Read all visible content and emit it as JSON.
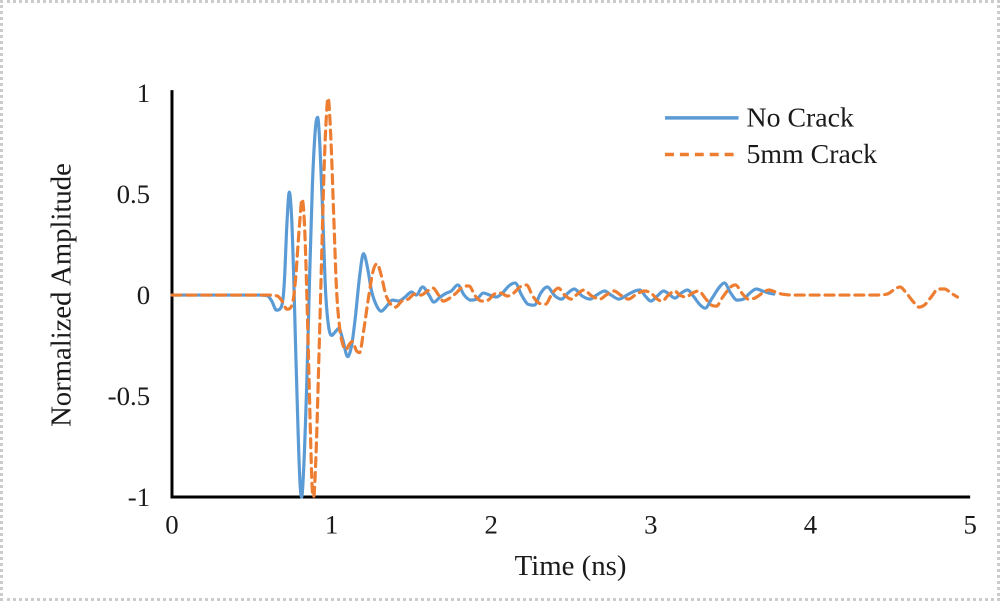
{
  "figure": {
    "background": "#ffffff",
    "border_color": "#cccccc"
  },
  "chart_data": {
    "type": "line",
    "title": "",
    "xlabel": "Time (ns)",
    "ylabel": "Normalized Amplitude",
    "xlim": [
      0,
      5
    ],
    "ylim": [
      -1,
      1
    ],
    "grid": false,
    "legend_position": "top-right",
    "axis_color": "#000000",
    "text_color": "#1a1a1a",
    "x_ticks": {
      "values": [
        0,
        1,
        2,
        3,
        4,
        5
      ],
      "labels": [
        "0",
        "1",
        "2",
        "3",
        "4",
        "5"
      ]
    },
    "y_ticks": {
      "values": [
        1,
        0.5,
        0,
        -0.5,
        -1
      ],
      "labels": [
        "1",
        "0.5",
        "0",
        "-0.5",
        "-1"
      ]
    },
    "series": [
      {
        "name": "No Crack",
        "color": "#5B9BD5",
        "style": "solid",
        "points": [
          [
            0,
            0
          ],
          [
            0.15,
            0
          ],
          [
            0.3,
            0
          ],
          [
            0.45,
            0
          ],
          [
            0.55,
            0
          ],
          [
            0.6,
            -0.005
          ],
          [
            0.625,
            -0.03
          ],
          [
            0.655,
            -0.075
          ],
          [
            0.675,
            -0.07
          ],
          [
            0.695,
            -0.02
          ],
          [
            0.705,
            0.08
          ],
          [
            0.72,
            0.35
          ],
          [
            0.735,
            0.51
          ],
          [
            0.75,
            0.38
          ],
          [
            0.762,
            0.1
          ],
          [
            0.775,
            -0.28
          ],
          [
            0.79,
            -0.68
          ],
          [
            0.802,
            -0.93
          ],
          [
            0.812,
            -1.0
          ],
          [
            0.825,
            -0.86
          ],
          [
            0.845,
            -0.42
          ],
          [
            0.862,
            0.08
          ],
          [
            0.88,
            0.55
          ],
          [
            0.898,
            0.82
          ],
          [
            0.912,
            0.88
          ],
          [
            0.928,
            0.72
          ],
          [
            0.945,
            0.38
          ],
          [
            0.962,
            0.02
          ],
          [
            0.98,
            -0.15
          ],
          [
            1.0,
            -0.2
          ],
          [
            1.02,
            -0.185
          ],
          [
            1.045,
            -0.165
          ],
          [
            1.07,
            -0.22
          ],
          [
            1.1,
            -0.305
          ],
          [
            1.125,
            -0.25
          ],
          [
            1.15,
            -0.1
          ],
          [
            1.175,
            0.09
          ],
          [
            1.2,
            0.205
          ],
          [
            1.225,
            0.135
          ],
          [
            1.25,
            0.02
          ],
          [
            1.28,
            -0.05
          ],
          [
            1.31,
            -0.08
          ],
          [
            1.345,
            -0.055
          ],
          [
            1.38,
            -0.025
          ],
          [
            1.42,
            -0.03
          ],
          [
            1.46,
            -0.01
          ],
          [
            1.5,
            0.015
          ],
          [
            1.53,
            0.0
          ],
          [
            1.57,
            0.04
          ],
          [
            1.61,
            0.0
          ],
          [
            1.64,
            -0.035
          ],
          [
            1.68,
            -0.01
          ],
          [
            1.72,
            0.01
          ],
          [
            1.75,
            0.02
          ],
          [
            1.79,
            0.05
          ],
          [
            1.83,
            0.0
          ],
          [
            1.87,
            -0.025
          ],
          [
            1.91,
            -0.02
          ],
          [
            1.95,
            0.01
          ],
          [
            1.99,
            0.0
          ],
          [
            2.03,
            -0.01
          ],
          [
            2.07,
            0.01
          ],
          [
            2.11,
            0.045
          ],
          [
            2.15,
            0.06
          ],
          [
            2.19,
            0.0
          ],
          [
            2.23,
            -0.045
          ],
          [
            2.27,
            -0.05
          ],
          [
            2.31,
            0.01
          ],
          [
            2.35,
            0.04
          ],
          [
            2.4,
            -0.005
          ],
          [
            2.44,
            -0.02
          ],
          [
            2.48,
            0.01
          ],
          [
            2.52,
            0.03
          ],
          [
            2.57,
            -0.005
          ],
          [
            2.62,
            -0.02
          ],
          [
            2.66,
            0.0
          ],
          [
            2.71,
            0.02
          ],
          [
            2.75,
            0.0
          ],
          [
            2.8,
            -0.02
          ],
          [
            2.85,
            0.0
          ],
          [
            2.9,
            0.02
          ],
          [
            2.93,
            0.025
          ],
          [
            2.97,
            -0.01
          ],
          [
            3.0,
            -0.03
          ],
          [
            3.04,
            -0.005
          ],
          [
            3.08,
            0.02
          ],
          [
            3.12,
            0.0
          ],
          [
            3.15,
            -0.015
          ],
          [
            3.19,
            0.01
          ],
          [
            3.23,
            0.025
          ],
          [
            3.27,
            -0.01
          ],
          [
            3.31,
            -0.05
          ],
          [
            3.34,
            -0.065
          ],
          [
            3.38,
            -0.02
          ],
          [
            3.43,
            0.04
          ],
          [
            3.46,
            0.06
          ],
          [
            3.5,
            0.01
          ],
          [
            3.54,
            -0.025
          ],
          [
            3.58,
            -0.02
          ],
          [
            3.62,
            0.01
          ],
          [
            3.66,
            0.03
          ],
          [
            3.7,
            0.02
          ],
          [
            3.74,
            0.01
          ],
          [
            3.77,
            0.005
          ]
        ]
      },
      {
        "name": "5mm Crack",
        "color": "#ED7D31",
        "style": "dashed",
        "points": [
          [
            0,
            0
          ],
          [
            0.15,
            0
          ],
          [
            0.3,
            0
          ],
          [
            0.45,
            0
          ],
          [
            0.6,
            0
          ],
          [
            0.66,
            -0.005
          ],
          [
            0.69,
            -0.03
          ],
          [
            0.72,
            -0.07
          ],
          [
            0.74,
            -0.065
          ],
          [
            0.76,
            -0.02
          ],
          [
            0.775,
            0.09
          ],
          [
            0.8,
            0.36
          ],
          [
            0.815,
            0.475
          ],
          [
            0.83,
            0.35
          ],
          [
            0.842,
            0.08
          ],
          [
            0.855,
            -0.3
          ],
          [
            0.868,
            -0.7
          ],
          [
            0.878,
            -0.95
          ],
          [
            0.887,
            -1.0
          ],
          [
            0.9,
            -0.84
          ],
          [
            0.918,
            -0.38
          ],
          [
            0.935,
            0.12
          ],
          [
            0.952,
            0.6
          ],
          [
            0.968,
            0.9
          ],
          [
            0.978,
            0.975
          ],
          [
            0.994,
            0.8
          ],
          [
            1.012,
            0.42
          ],
          [
            1.03,
            0.04
          ],
          [
            1.05,
            -0.16
          ],
          [
            1.072,
            -0.25
          ],
          [
            1.09,
            -0.27
          ],
          [
            1.11,
            -0.245
          ],
          [
            1.13,
            -0.23
          ],
          [
            1.155,
            -0.275
          ],
          [
            1.175,
            -0.285
          ],
          [
            1.2,
            -0.18
          ],
          [
            1.23,
            -0.02
          ],
          [
            1.26,
            0.12
          ],
          [
            1.285,
            0.155
          ],
          [
            1.31,
            0.1
          ],
          [
            1.34,
            0.0
          ],
          [
            1.37,
            -0.045
          ],
          [
            1.4,
            -0.06
          ],
          [
            1.44,
            -0.03
          ],
          [
            1.48,
            -0.02
          ],
          [
            1.52,
            0.005
          ],
          [
            1.56,
            0.0
          ],
          [
            1.6,
            0.02
          ],
          [
            1.635,
            0.035
          ],
          [
            1.67,
            0.0
          ],
          [
            1.7,
            -0.03
          ],
          [
            1.74,
            -0.015
          ],
          [
            1.78,
            0.01
          ],
          [
            1.82,
            0.04
          ],
          [
            1.86,
            0.045
          ],
          [
            1.9,
            -0.005
          ],
          [
            1.94,
            -0.03
          ],
          [
            1.98,
            -0.025
          ],
          [
            2.02,
            0.005
          ],
          [
            2.06,
            0.01
          ],
          [
            2.1,
            -0.005
          ],
          [
            2.14,
            0.01
          ],
          [
            2.18,
            0.04
          ],
          [
            2.22,
            0.05
          ],
          [
            2.26,
            -0.005
          ],
          [
            2.3,
            -0.04
          ],
          [
            2.34,
            -0.045
          ],
          [
            2.38,
            0.005
          ],
          [
            2.42,
            0.035
          ],
          [
            2.46,
            0.0
          ],
          [
            2.5,
            -0.02
          ],
          [
            2.54,
            0.005
          ],
          [
            2.58,
            0.025
          ],
          [
            2.63,
            -0.005
          ],
          [
            2.68,
            -0.02
          ],
          [
            2.72,
            0.0
          ],
          [
            2.77,
            0.02
          ],
          [
            2.81,
            0.0
          ],
          [
            2.86,
            -0.02
          ],
          [
            2.91,
            0.005
          ],
          [
            2.96,
            0.02
          ],
          [
            3.0,
            0.01
          ],
          [
            3.04,
            -0.02
          ],
          [
            3.07,
            -0.03
          ],
          [
            3.11,
            0.0
          ],
          [
            3.15,
            0.02
          ],
          [
            3.18,
            0.0
          ],
          [
            3.22,
            -0.01
          ],
          [
            3.26,
            0.01
          ],
          [
            3.3,
            0.02
          ],
          [
            3.34,
            -0.015
          ],
          [
            3.38,
            -0.05
          ],
          [
            3.41,
            -0.055
          ],
          [
            3.45,
            -0.01
          ],
          [
            3.5,
            0.04
          ],
          [
            3.53,
            0.05
          ],
          [
            3.57,
            0.01
          ],
          [
            3.61,
            -0.02
          ],
          [
            3.65,
            -0.015
          ],
          [
            3.7,
            0.01
          ],
          [
            3.74,
            0.025
          ],
          [
            3.78,
            0.015
          ],
          [
            3.82,
            0.005
          ],
          [
            3.9,
            0
          ],
          [
            4.0,
            0
          ],
          [
            4.1,
            0
          ],
          [
            4.2,
            0
          ],
          [
            4.3,
            0
          ],
          [
            4.4,
            0
          ],
          [
            4.48,
            0.005
          ],
          [
            4.53,
            0.03
          ],
          [
            4.56,
            0.04
          ],
          [
            4.6,
            0.01
          ],
          [
            4.64,
            -0.03
          ],
          [
            4.68,
            -0.06
          ],
          [
            4.72,
            -0.045
          ],
          [
            4.76,
            -0.005
          ],
          [
            4.8,
            0.03
          ],
          [
            4.84,
            0.03
          ],
          [
            4.88,
            0.01
          ],
          [
            4.92,
            -0.01
          ]
        ]
      }
    ]
  }
}
